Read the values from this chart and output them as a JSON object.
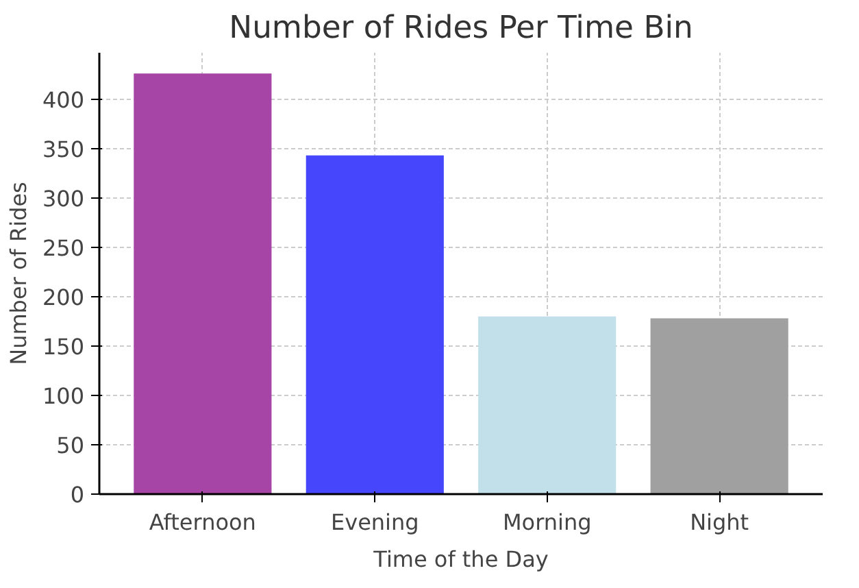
{
  "chart_data": {
    "type": "bar",
    "title": "Number of Rides Per Time Bin",
    "xlabel": "Time of the Day",
    "ylabel": "Number of Rides",
    "categories": [
      "Afternoon",
      "Evening",
      "Morning",
      "Night"
    ],
    "values": [
      426,
      343,
      180,
      178
    ],
    "colors": [
      "#a645a6",
      "#4646fc",
      "#c2e0ea",
      "#a0a0a0"
    ],
    "ylim": [
      0,
      447
    ],
    "yticks": [
      0,
      50,
      100,
      150,
      200,
      250,
      300,
      350,
      400
    ],
    "grid": true
  }
}
